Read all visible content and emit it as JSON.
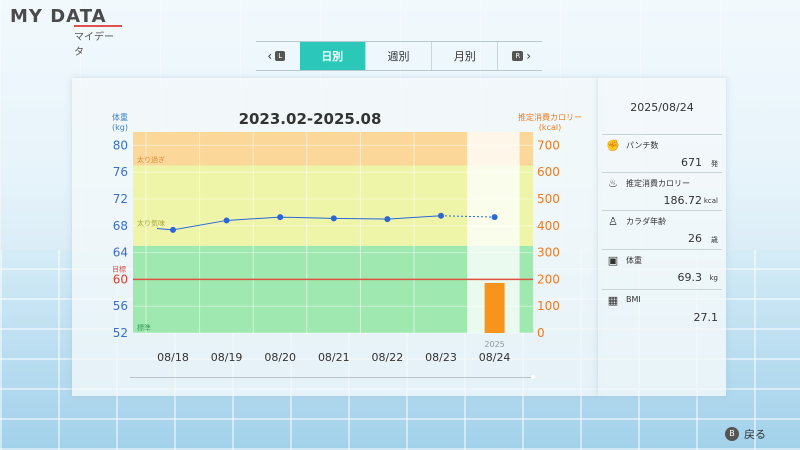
{
  "app": {
    "title": "MY DATA",
    "subtitle": "マイデータ"
  },
  "tabs": {
    "prev_icon": "chevron-left-icon",
    "prev_badge": "L",
    "next_badge": "R",
    "next_icon": "chevron-right-icon",
    "items": [
      {
        "label": "日別",
        "active": true
      },
      {
        "label": "週別",
        "active": false
      },
      {
        "label": "月別",
        "active": false
      }
    ]
  },
  "chart_data": {
    "type": "line",
    "title": "2023.02-2025.08",
    "ylabel_left": [
      "体重",
      "(kg)"
    ],
    "ylabel_right": [
      "推定消費カロリー",
      "(kcal)"
    ],
    "y_left_ticks": [
      80,
      76,
      72,
      68,
      64,
      60,
      56,
      52
    ],
    "y_right_ticks": [
      700,
      600,
      500,
      400,
      300,
      200,
      100,
      0
    ],
    "ylim_left": [
      52,
      82
    ],
    "ylim_right": [
      0,
      750
    ],
    "categories": [
      "08/18",
      "08/19",
      "08/20",
      "08/21",
      "08/22",
      "08/23",
      "08/24"
    ],
    "selected_year": "2025",
    "bands": [
      {
        "label": "太り過ぎ",
        "from": 77,
        "to": 82,
        "color": "#fbd89a"
      },
      {
        "label": "太り気味",
        "from": 65,
        "to": 77,
        "color": "#eef5a8"
      },
      {
        "label": "標準",
        "from": 52,
        "to": 65,
        "color": "#9fe8b0"
      }
    ],
    "target": {
      "label": "目標",
      "value": 60,
      "color": "#e05040"
    },
    "series": [
      {
        "name": "体重",
        "axis": "left",
        "values": [
          67.6,
          67.4,
          68.8,
          69.3,
          69.1,
          69.0,
          69.5,
          69.3
        ],
        "x_offsets": [
          -0.3,
          0,
          1,
          2,
          3,
          4,
          5,
          6
        ],
        "color": "#2a66d8"
      },
      {
        "name": "推定消費カロリー",
        "axis": "right",
        "bars": [
          {
            "x": 6,
            "value": 186.72
          }
        ],
        "color": "#f7941d"
      }
    ]
  },
  "side": {
    "date": "2025/08/24",
    "stats": [
      {
        "icon": "glove-icon",
        "glyph": "✊",
        "label": "パンチ数",
        "value": "671",
        "unit": "発"
      },
      {
        "icon": "flame-icon",
        "glyph": "♨",
        "label": "推定消費カロリー",
        "value": "186.72",
        "unit": "kcal"
      },
      {
        "icon": "body-icon",
        "glyph": "♙",
        "label": "カラダ年齢",
        "value": "26",
        "unit": "歳"
      },
      {
        "icon": "scale-icon",
        "glyph": "▣",
        "label": "体重",
        "value": "69.3",
        "unit": "kg"
      },
      {
        "icon": "calculator-icon",
        "glyph": "▦",
        "label": "BMI",
        "value": "27.1",
        "unit": ""
      }
    ]
  },
  "footer": {
    "back_button_badge": "B",
    "back_label": "戻る"
  }
}
